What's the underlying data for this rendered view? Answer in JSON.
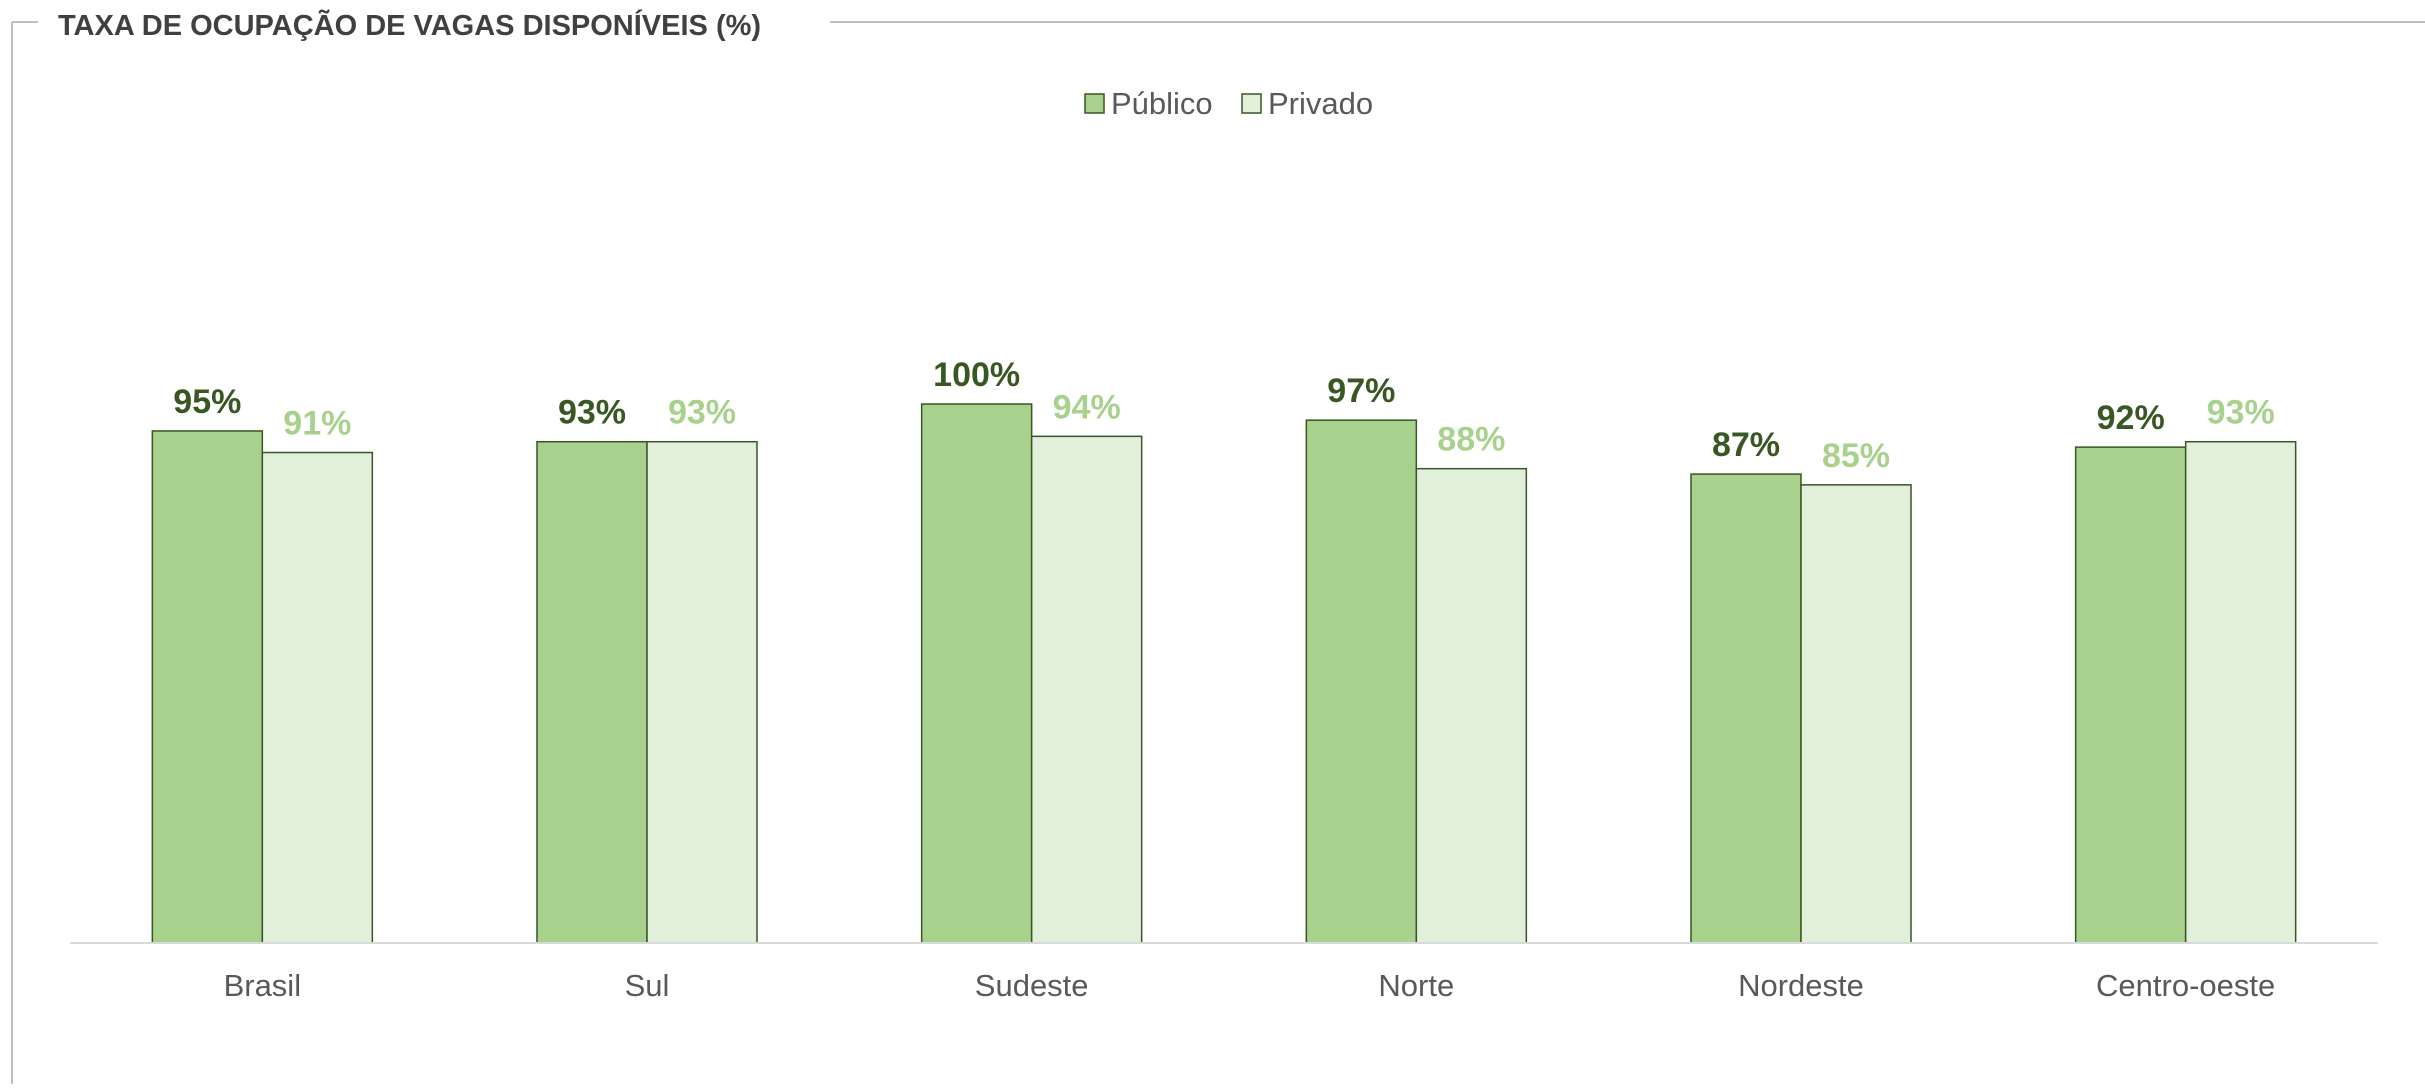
{
  "chart_data": {
    "type": "bar",
    "title": "TAXA DE OCUPAÇÃO DE VAGAS DISPONÍVEIS (%)",
    "categories": [
      "Brasil",
      "Sul",
      "Sudeste",
      "Norte",
      "Nordeste",
      "Centro-oeste"
    ],
    "series": [
      {
        "name": "Público",
        "values": [
          95,
          93,
          100,
          97,
          87,
          92
        ],
        "labels": [
          "95%",
          "93%",
          "100%",
          "97%",
          "87%",
          "92%"
        ],
        "color": "#a9d18e",
        "label_color": "#385723"
      },
      {
        "name": "Privado",
        "values": [
          91,
          93,
          94,
          88,
          85,
          93
        ],
        "labels": [
          "91%",
          "93%",
          "94%",
          "88%",
          "85%",
          "93%"
        ],
        "color": "#e2efda",
        "label_color": "#a9d18e"
      }
    ],
    "legend_position": "top-center",
    "value_axis_visible": false,
    "grid": false,
    "colors": {
      "bar_outline": "#375623",
      "axis_line": "#d9d9d9",
      "frame_line": "#bfbfbf",
      "title_text": "#404040",
      "category_text": "#595959",
      "legend_text": "#595959"
    }
  }
}
